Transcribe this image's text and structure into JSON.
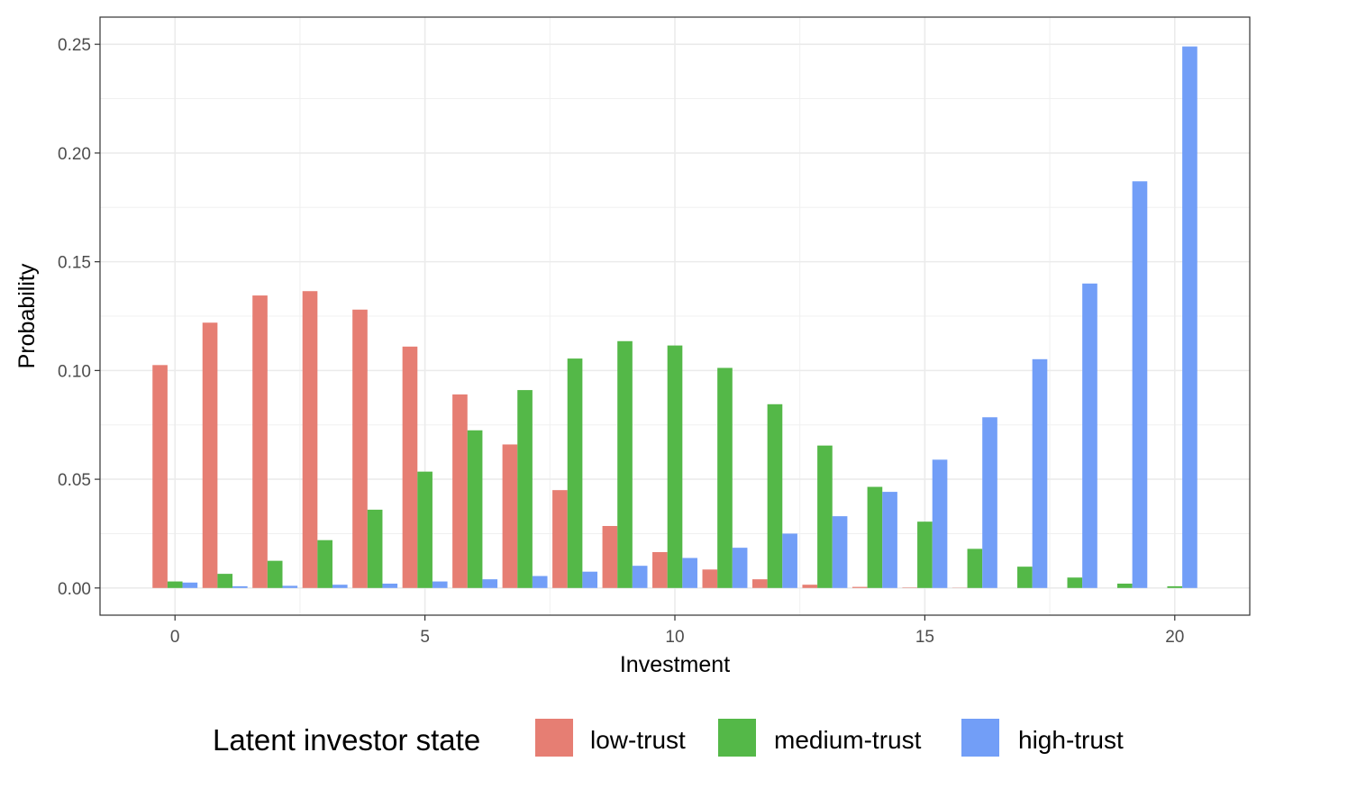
{
  "chart_data": {
    "type": "bar",
    "xlabel": "Investment",
    "ylabel": "Probability",
    "xlim": [
      -1.5,
      21.5
    ],
    "ylim": [
      -0.0125,
      0.2625
    ],
    "x_ticks": [
      0,
      5,
      10,
      15,
      20
    ],
    "y_ticks": [
      0.0,
      0.05,
      0.1,
      0.15,
      0.2,
      0.25
    ],
    "x_tick_labels": [
      "0",
      "5",
      "10",
      "15",
      "20"
    ],
    "y_tick_labels": [
      "0.00",
      "0.05",
      "0.10",
      "0.15",
      "0.20",
      "0.25"
    ],
    "grid": true,
    "legend_position": "bottom",
    "legend_title": "Latent investor state",
    "x": [
      0,
      1,
      2,
      3,
      4,
      5,
      6,
      7,
      8,
      9,
      10,
      11,
      12,
      13,
      14,
      15,
      16,
      17,
      18,
      19,
      20
    ],
    "series": [
      {
        "name": "low-trust",
        "color": "#e67e73",
        "values": [
          0.1025,
          0.122,
          0.1345,
          0.1365,
          0.128,
          0.111,
          0.089,
          0.066,
          0.045,
          0.0285,
          0.0165,
          0.0085,
          0.004,
          0.0015,
          0.0005,
          0.0002,
          0.0001,
          0,
          0,
          0,
          0
        ]
      },
      {
        "name": "medium-trust",
        "color": "#54b848",
        "values": [
          0.003,
          0.0065,
          0.0125,
          0.022,
          0.036,
          0.0535,
          0.0725,
          0.091,
          0.1055,
          0.1135,
          0.1115,
          0.1012,
          0.0845,
          0.0655,
          0.0465,
          0.0305,
          0.018,
          0.0098,
          0.0048,
          0.002,
          0.0008
        ]
      },
      {
        "name": "high-trust",
        "color": "#729ef7",
        "values": [
          0.0025,
          0.0008,
          0.001,
          0.0015,
          0.002,
          0.003,
          0.004,
          0.0055,
          0.0075,
          0.0102,
          0.0138,
          0.0185,
          0.025,
          0.033,
          0.0442,
          0.059,
          0.0785,
          0.1052,
          0.14,
          0.187,
          0.249
        ]
      }
    ]
  }
}
